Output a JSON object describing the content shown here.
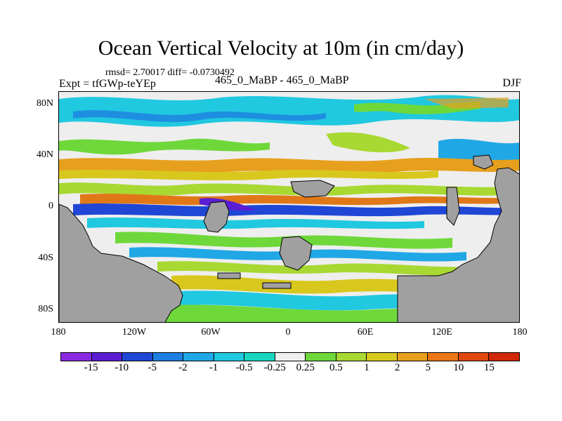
{
  "title": "Ocean Vertical Velocity at 10m (in cm/day)",
  "stats": "rmsd= 2.70017 diff= -0.0730492",
  "expt": "Expt = tfGWp-teYEp",
  "comparison": "465_0_MaBP - 465_0_MaBP",
  "season": "DJF",
  "y_ticks": [
    "80N",
    "40N",
    "0",
    "40S",
    "80S"
  ],
  "x_ticks": [
    "180",
    "120W",
    "60W",
    "0",
    "60E",
    "120E",
    "180"
  ],
  "colorbar": {
    "labels": [
      "-15",
      "-10",
      "-5",
      "-2",
      "-1",
      "-0.5",
      "-0.25",
      "0.25",
      "0.5",
      "1",
      "2",
      "5",
      "10",
      "15"
    ],
    "colors": [
      "#8a2be2",
      "#5b1ed4",
      "#2046d6",
      "#1e7fe0",
      "#20a7e6",
      "#20c8e0",
      "#18d6c0",
      "#eeeeee",
      "#6ed83a",
      "#a8d832",
      "#d8c81e",
      "#e6a01e",
      "#ea7818",
      "#e04810",
      "#d02808"
    ]
  },
  "land_color": "#a0a0a0"
}
